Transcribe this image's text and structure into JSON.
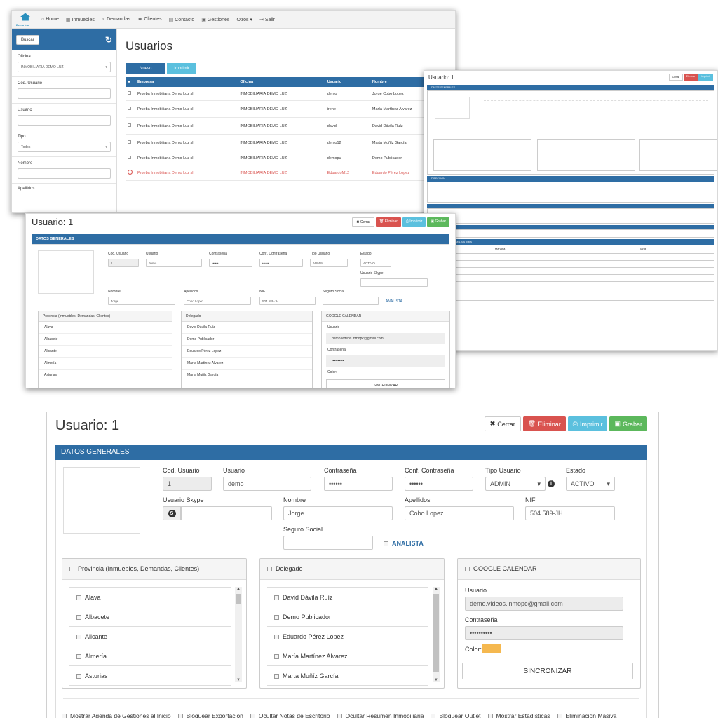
{
  "nav": {
    "logo_text": "Demo Luz",
    "items": [
      "Home",
      "Inmuebles",
      "Demandas",
      "Clientes",
      "Contacto",
      "Gestiones",
      "Otros ▾",
      "Salir"
    ]
  },
  "list_screen": {
    "search_button": "Buscar",
    "filters": [
      {
        "label": "Oficina",
        "value": "INMOBILIARIA DEMO LUZ",
        "type": "select"
      },
      {
        "label": "Cod. Usuario",
        "value": "",
        "type": "text"
      },
      {
        "label": "Usuario",
        "value": "",
        "type": "text"
      },
      {
        "label": "Tipo",
        "value": "Todos",
        "type": "select"
      },
      {
        "label": "Nombre",
        "value": "",
        "type": "text"
      }
    ],
    "cut_label": "Apellidos",
    "title": "Usuarios",
    "nuevo": "Nuevo",
    "imprimir": "Imprimir",
    "columns": [
      "Empresa",
      "Oficina",
      "Usuario",
      "Nombre"
    ],
    "rows": [
      {
        "empresa": "Prueba Inmobiliaria Demo Luz sl",
        "oficina": "INMOBILIARIA DEMO LUZ",
        "usuario": "demo",
        "nombre": "Jorge Cobo Lopez",
        "phone": false,
        "disabled": false
      },
      {
        "empresa": "Prueba Inmobiliaria Demo Luz sl",
        "oficina": "INMOBILIARIA DEMO LUZ",
        "usuario": "irene",
        "nombre": "María Martínez Alvarez",
        "phone": true,
        "disabled": false
      },
      {
        "empresa": "Prueba Inmobiliaria Demo Luz sl",
        "oficina": "INMOBILIARIA DEMO LUZ",
        "usuario": "david",
        "nombre": "David Dávila Ruíz",
        "phone": true,
        "disabled": false
      },
      {
        "empresa": "Prueba Inmobiliaria Demo Luz sl",
        "oficina": "INMOBILIARIA DEMO LUZ",
        "usuario": "demo12",
        "nombre": "Marta Muñíz García",
        "phone": true,
        "disabled": false
      },
      {
        "empresa": "Prueba Inmobiliaria Demo Luz sl",
        "oficina": "INMOBILIARIA DEMO LUZ",
        "usuario": "demopu",
        "nombre": "Demo Publicador",
        "phone": false,
        "disabled": false
      },
      {
        "empresa": "Prueba Inmobiliaria Demo Luz sl",
        "oficina": "INMOBILIARIA DEMO LUZ",
        "usuario": "EduardoM12",
        "nombre": "Eduardo Pérez Lopez",
        "phone": false,
        "disabled": true
      }
    ]
  },
  "detail_screen": {
    "title": "Usuario: 1",
    "section": "DATOS GENERALES",
    "section_dir": "DIRECCIÓN",
    "section_horario": "HORARIO SEMANAL DEL SISTEMA",
    "col_manana": "Mañana",
    "col_tarde": "Tarde"
  },
  "form": {
    "title": "Usuario: 1",
    "buttons": {
      "cerrar": "Cerrar",
      "eliminar": "Eliminar",
      "imprimir": "Imprimir",
      "grabar": "Grabar"
    },
    "section": "DATOS GENERALES",
    "fields": {
      "cod_usuario": {
        "label": "Cod. Usuario",
        "value": "1"
      },
      "usuario": {
        "label": "Usuario",
        "value": "demo"
      },
      "contrasena": {
        "label": "Contraseña",
        "value": "••••••"
      },
      "conf_contrasena": {
        "label": "Conf. Contraseña",
        "value": "••••••"
      },
      "tipo_usuario": {
        "label": "Tipo Usuario",
        "value": "ADMIN"
      },
      "estado": {
        "label": "Estado",
        "value": "ACTIVO"
      },
      "usuario_skype": {
        "label": "Usuario Skype",
        "value": ""
      },
      "nombre": {
        "label": "Nombre",
        "value": "Jorge"
      },
      "apellidos": {
        "label": "Apellidos",
        "value": "Cobo Lopez"
      },
      "nif": {
        "label": "NIF",
        "value": "504.589-JH"
      },
      "seguro_social": {
        "label": "Seguro Social",
        "value": ""
      }
    },
    "analista": "ANALISTA",
    "provincia_panel": {
      "title": "Provincia (Inmuebles, Demandas, Clientes)",
      "items": [
        "Alava",
        "Albacete",
        "Alicante",
        "Almería",
        "Asturias"
      ]
    },
    "delegado_panel": {
      "title": "Delegado",
      "items": [
        "David Dávila Ruíz",
        "Demo Publicador",
        "Eduardo Pérez Lopez",
        "María Martínez Alvarez",
        "Marta Muñíz García"
      ]
    },
    "google_panel": {
      "title": "GOOGLE CALENDAR",
      "usuario_label": "Usuario",
      "usuario_value": "demo.videos.inmopc@gmail.com",
      "contrasena_label": "Contraseña",
      "contrasena_value": "••••••••••",
      "color_label": "Color:",
      "color": "#f5b84f",
      "sync": "SINCRONIZAR"
    },
    "options": [
      "Mostrar Agenda de Gestiones al Inicio",
      "Bloquear Exportación",
      "Ocultar Notas de Escritorio",
      "Ocultar Resumen Inmobiliaria",
      "Bloquear Outlet",
      "Mostrar Estadísticas",
      "Eliminación Masiva"
    ]
  },
  "colors": {
    "primary": "#2e6da4",
    "info": "#5bc0de",
    "danger": "#d9534f",
    "success": "#5cb85c"
  }
}
